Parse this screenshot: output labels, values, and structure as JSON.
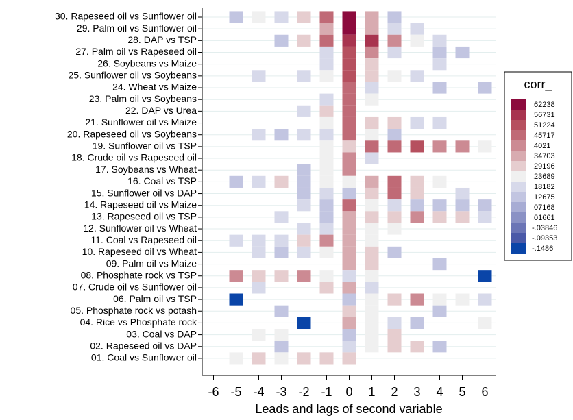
{
  "chart_data": {
    "type": "heatmap",
    "xlabel": "Leads and lags of second variable",
    "categories": [
      "30. Rapeseed oil vs Sunflower oil",
      "29. Palm oil vs Sunflower oil",
      "28. DAP vs TSP",
      "27. Palm oil vs Rapeseed oil",
      "26. Soybeans vs Maize",
      "25. Sunflower oil vs Soybeans",
      "24. Wheat vs Maize",
      "23. Palm oil vs Soybeans",
      "22. DAP vs Urea",
      "21. Sunflower oil vs Maize",
      "20. Rapeseed oil vs Soybeans",
      "19. Sunflower oil vs TSP",
      "18. Crude oil vs Rapeseed oil",
      "17. Soybeans vs Wheat",
      "16. Coal vs TSP",
      "15. Sunflower oil vs DAP",
      "14. Rapeseed oil vs Maize",
      "13. Rapeseed oil vs TSP",
      "12. Sunflower oil vs Wheat",
      "11. Coal vs Rapeseed oil",
      "10. Rapeseed oil vs Wheat",
      "09. Palm oil vs Maize",
      "08. Phosphate rock vs TSP",
      "07. Crude oil vs Sunflower oil",
      "06. Palm oil vs TSP",
      "05. Phosphate rock vs potash",
      "04. Rice vs Phosphate rock",
      "03. Coal vs DAP",
      "02. Rapeseed oil vs DAP",
      "01. Coal vs Sunflower oil"
    ],
    "x": [
      -6,
      -5,
      -4,
      -3,
      -2,
      -1,
      0,
      1,
      2,
      3,
      4,
      5,
      6
    ],
    "xlim": [
      -6.5,
      6.5
    ],
    "xticks": [
      -6,
      -5,
      -4,
      -3,
      -2,
      -1,
      0,
      1,
      2,
      3,
      4,
      5,
      6
    ],
    "values": [
      [
        null,
        0.13,
        0.24,
        0.18,
        0.29,
        0.46,
        0.62,
        0.35,
        0.13,
        null,
        null,
        null,
        null
      ],
      [
        null,
        null,
        null,
        null,
        null,
        0.35,
        0.62,
        0.35,
        0.18,
        0.18,
        null,
        null,
        null
      ],
      [
        null,
        null,
        null,
        0.13,
        0.29,
        0.46,
        0.57,
        0.57,
        0.4,
        0.24,
        0.18,
        null,
        null
      ],
      [
        null,
        null,
        null,
        null,
        null,
        0.18,
        0.51,
        0.4,
        0.18,
        null,
        0.13,
        0.13,
        null
      ],
      [
        null,
        null,
        null,
        null,
        null,
        0.18,
        0.51,
        0.29,
        null,
        null,
        0.18,
        null,
        null
      ],
      [
        null,
        null,
        0.18,
        null,
        0.18,
        0.24,
        0.51,
        0.29,
        0.24,
        0.18,
        null,
        null,
        null
      ],
      [
        null,
        null,
        null,
        null,
        null,
        null,
        0.46,
        0.18,
        null,
        null,
        0.13,
        null,
        0.13
      ],
      [
        null,
        null,
        null,
        null,
        null,
        0.18,
        0.46,
        0.24,
        null,
        null,
        null,
        null,
        null
      ],
      [
        null,
        null,
        null,
        null,
        0.18,
        0.29,
        0.46,
        null,
        null,
        null,
        null,
        null,
        null
      ],
      [
        null,
        null,
        null,
        null,
        null,
        0.24,
        0.46,
        0.29,
        0.29,
        0.18,
        0.18,
        null,
        null
      ],
      [
        null,
        null,
        0.18,
        0.13,
        0.18,
        0.18,
        0.46,
        0.24,
        0.13,
        null,
        null,
        null,
        null
      ],
      [
        null,
        null,
        null,
        null,
        null,
        0.24,
        0.29,
        0.46,
        0.46,
        0.51,
        0.4,
        0.4,
        0.24
      ],
      [
        null,
        null,
        null,
        null,
        null,
        0.24,
        0.4,
        0.18,
        null,
        null,
        null,
        null,
        null
      ],
      [
        null,
        null,
        null,
        null,
        0.13,
        0.24,
        0.4,
        null,
        null,
        null,
        null,
        null,
        null
      ],
      [
        null,
        0.13,
        0.18,
        0.29,
        0.13,
        0.24,
        0.24,
        0.35,
        0.46,
        0.29,
        0.24,
        null,
        null
      ],
      [
        null,
        null,
        null,
        null,
        0.13,
        0.18,
        0.13,
        0.29,
        0.46,
        0.29,
        null,
        0.18,
        null
      ],
      [
        null,
        null,
        null,
        null,
        0.18,
        0.13,
        0.46,
        0.24,
        0.18,
        0.13,
        0.13,
        0.13,
        0.13
      ],
      [
        null,
        null,
        null,
        0.18,
        null,
        0.13,
        0.35,
        0.29,
        0.29,
        0.4,
        0.29,
        0.29,
        0.18
      ],
      [
        null,
        null,
        null,
        null,
        0.18,
        0.18,
        0.35,
        0.24,
        0.24,
        null,
        null,
        null,
        null
      ],
      [
        null,
        0.18,
        0.18,
        0.18,
        0.29,
        0.4,
        0.35,
        0.24,
        null,
        null,
        null,
        null,
        null
      ],
      [
        null,
        null,
        0.18,
        0.13,
        0.18,
        0.24,
        0.35,
        0.29,
        0.13,
        null,
        null,
        null,
        null
      ],
      [
        null,
        null,
        null,
        null,
        null,
        null,
        0.35,
        0.29,
        null,
        null,
        0.13,
        null,
        null
      ],
      [
        null,
        0.4,
        0.29,
        0.29,
        0.4,
        0.24,
        0.18,
        0.24,
        null,
        null,
        null,
        null,
        -0.15
      ],
      [
        null,
        null,
        0.18,
        null,
        null,
        0.29,
        0.35,
        0.18,
        null,
        null,
        null,
        null,
        null
      ],
      [
        null,
        -0.15,
        null,
        null,
        null,
        null,
        0.13,
        0.24,
        0.29,
        0.4,
        0.24,
        0.24,
        0.18
      ],
      [
        null,
        null,
        null,
        0.13,
        null,
        null,
        0.29,
        0.24,
        null,
        null,
        0.13,
        null,
        null
      ],
      [
        null,
        null,
        null,
        null,
        -0.15,
        null,
        0.35,
        0.24,
        0.18,
        0.13,
        null,
        null,
        0.24
      ],
      [
        null,
        null,
        0.24,
        0.24,
        null,
        null,
        0.13,
        0.24,
        0.29,
        null,
        null,
        null,
        null
      ],
      [
        null,
        null,
        null,
        0.13,
        null,
        null,
        0.18,
        0.24,
        0.29,
        0.29,
        0.13,
        null,
        null
      ],
      [
        null,
        0.24,
        0.29,
        0.24,
        0.29,
        0.29,
        0.29,
        null,
        null,
        null,
        null,
        null,
        null
      ]
    ],
    "colorbar": {
      "title": "corr_",
      "ticks": [
        {
          "value": 0.62238,
          "label": ".62238"
        },
        {
          "value": 0.56731,
          "label": ".56731"
        },
        {
          "value": 0.51224,
          "label": ".51224"
        },
        {
          "value": 0.45717,
          "label": ".45717"
        },
        {
          "value": 0.4021,
          "label": ".4021"
        },
        {
          "value": 0.34703,
          "label": ".34703"
        },
        {
          "value": 0.29196,
          "label": ".29196"
        },
        {
          "value": 0.23689,
          "label": ".23689"
        },
        {
          "value": 0.18182,
          "label": ".18182"
        },
        {
          "value": 0.12675,
          "label": ".12675"
        },
        {
          "value": 0.07168,
          "label": ".07168"
        },
        {
          "value": 0.01661,
          "label": ".01661"
        },
        {
          "value": -0.03846,
          "label": "-.03846"
        },
        {
          "value": -0.09353,
          "label": "-.09353"
        },
        {
          "value": -0.1486,
          "label": "-.1486"
        }
      ],
      "colors": [
        "#8c0b3d",
        "#a8344f",
        "#b6505f",
        "#c06a76",
        "#cc8a93",
        "#d8abb0",
        "#e6cdcf",
        "#f0f0f0",
        "#d7d9ea",
        "#c2c5e1",
        "#a7acd4",
        "#8a91c5",
        "#6b75b6",
        "#4a59a8",
        "#0a45a8"
      ]
    }
  }
}
